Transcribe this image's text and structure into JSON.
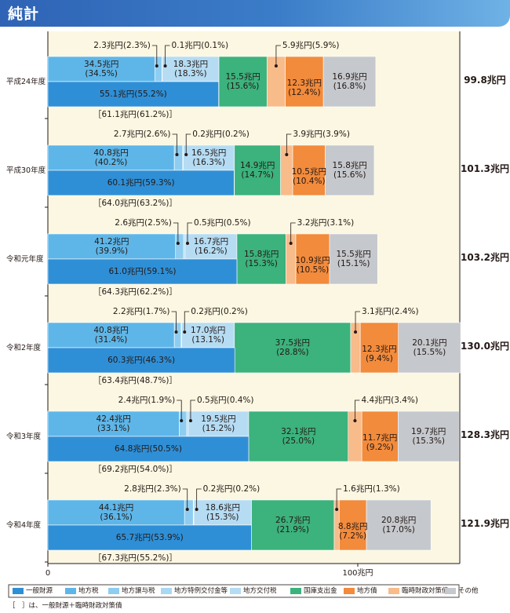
{
  "header": {
    "title": "純計"
  },
  "colors": {
    "一般財源": "#2f8fd6",
    "地方税": "#5eb6e8",
    "地方譲与税": "#8ecdf0",
    "地方特例交付金等": "#a9d8f3",
    "地方交付税": "#b5dcf3",
    "国庫支出金": "#3cb27d",
    "地方債": "#f28b3c",
    "臨時財政対策債": "#f8bb8a",
    "その他": "#c5c8cc",
    "total_area": "#fbf7e2"
  },
  "chart_data": {
    "type": "bar",
    "orientation": "horizontal",
    "stacked": true,
    "unit": "兆円",
    "xlim": [
      0,
      130
    ],
    "x_ticks": [
      {
        "value": 0,
        "label": "0"
      },
      {
        "value": 100,
        "label": "100兆円"
      }
    ],
    "legend": {
      "position": "bottom",
      "items": [
        "一般財源",
        "地方税",
        "地方譲与税",
        "地方特例交付金等",
        "地方交付税",
        "国庫支出金",
        "地方債",
        "臨時財政対策債",
        "その他"
      ]
    },
    "footnote": "［　］は、一般財源＋臨時財政対策債",
    "categories": [
      {
        "year": "平成24年度",
        "total_label": "99.8兆円",
        "general": {
          "value": 55.1,
          "label": "55.1兆円(55.2%)"
        },
        "chihouzei": {
          "value": 34.5,
          "label": "34.5兆円\n(34.5%)"
        },
        "jouyozei": {
          "value": 2.3,
          "label": "2.3兆円(2.3%)"
        },
        "tokurei": {
          "value": 0.1,
          "label": "0.1兆円(0.1%)"
        },
        "koufuzei": {
          "value": 18.3,
          "label": "18.3兆円\n(18.3%)"
        },
        "kokko": {
          "value": 15.5,
          "label": "15.5兆円\n(15.6%)"
        },
        "rinji": {
          "value": 5.9,
          "label": "5.9兆円(5.9%)"
        },
        "chihousai": {
          "value": 12.3,
          "label": "12.3兆円\n(12.4%)"
        },
        "other": {
          "value": 16.9,
          "label": "16.9兆円\n(16.8%)"
        },
        "bracket": "［61.1兆円(61.2%)］"
      },
      {
        "year": "平成30年度",
        "total_label": "101.3兆円",
        "general": {
          "value": 60.1,
          "label": "60.1兆円(59.3%)"
        },
        "chihouzei": {
          "value": 40.8,
          "label": "40.8兆円\n(40.2%)"
        },
        "jouyozei": {
          "value": 2.7,
          "label": "2.7兆円(2.6%)"
        },
        "tokurei": {
          "value": 0.2,
          "label": "0.2兆円(0.2%)"
        },
        "koufuzei": {
          "value": 16.5,
          "label": "16.5兆円\n(16.3%)"
        },
        "kokko": {
          "value": 14.9,
          "label": "14.9兆円\n(14.7%)"
        },
        "rinji": {
          "value": 3.9,
          "label": "3.9兆円(3.9%)"
        },
        "chihousai": {
          "value": 10.5,
          "label": "10.5兆円\n(10.4%)"
        },
        "other": {
          "value": 15.8,
          "label": "15.8兆円\n(15.6%)"
        },
        "bracket": "［64.0兆円(63.2%)］"
      },
      {
        "year": "令和元年度",
        "total_label": "103.2兆円",
        "general": {
          "value": 61.0,
          "label": "61.0兆円(59.1%)"
        },
        "chihouzei": {
          "value": 41.2,
          "label": "41.2兆円\n(39.9%)"
        },
        "jouyozei": {
          "value": 2.6,
          "label": "2.6兆円(2.5%)"
        },
        "tokurei": {
          "value": 0.5,
          "label": "0.5兆円(0.5%)"
        },
        "koufuzei": {
          "value": 16.7,
          "label": "16.7兆円\n(16.2%)"
        },
        "kokko": {
          "value": 15.8,
          "label": "15.8兆円\n(15.3%)"
        },
        "rinji": {
          "value": 3.2,
          "label": "3.2兆円(3.1%)"
        },
        "chihousai": {
          "value": 10.9,
          "label": "10.9兆円\n(10.5%)"
        },
        "other": {
          "value": 15.5,
          "label": "15.5兆円\n(15.1%)"
        },
        "bracket": "［64.3兆円(62.2%)］"
      },
      {
        "year": "令和2年度",
        "total_label": "130.0兆円",
        "general": {
          "value": 60.3,
          "label": "60.3兆円(46.3%)"
        },
        "chihouzei": {
          "value": 40.8,
          "label": "40.8兆円\n(31.4%)"
        },
        "jouyozei": {
          "value": 2.2,
          "label": "2.2兆円(1.7%)"
        },
        "tokurei": {
          "value": 0.2,
          "label": "0.2兆円(0.2%)"
        },
        "koufuzei": {
          "value": 17.0,
          "label": "17.0兆円\n(13.1%)"
        },
        "kokko": {
          "value": 37.5,
          "label": "37.5兆円\n(28.8%)"
        },
        "rinji": {
          "value": 3.1,
          "label": "3.1兆円(2.4%)"
        },
        "chihousai": {
          "value": 12.3,
          "label": "12.3兆円\n(9.4%)"
        },
        "other": {
          "value": 20.1,
          "label": "20.1兆円\n(15.5%)"
        },
        "bracket": "［63.4兆円(48.7%)］"
      },
      {
        "year": "令和3年度",
        "total_label": "128.3兆円",
        "general": {
          "value": 64.8,
          "label": "64.8兆円(50.5%)"
        },
        "chihouzei": {
          "value": 42.4,
          "label": "42.4兆円\n(33.1%)"
        },
        "jouyozei": {
          "value": 2.4,
          "label": "2.4兆円(1.9%)"
        },
        "tokurei": {
          "value": 0.5,
          "label": "0.5兆円(0.4%)"
        },
        "koufuzei": {
          "value": 19.5,
          "label": "19.5兆円\n(15.2%)"
        },
        "kokko": {
          "value": 32.1,
          "label": "32.1兆円\n(25.0%)"
        },
        "rinji": {
          "value": 4.4,
          "label": "4.4兆円(3.4%)"
        },
        "chihousai": {
          "value": 11.7,
          "label": "11.7兆円\n(9.2%)"
        },
        "other": {
          "value": 19.7,
          "label": "19.7兆円\n(15.3%)"
        },
        "bracket": "［69.2兆円(54.0%)］"
      },
      {
        "year": "令和4年度",
        "total_label": "121.9兆円",
        "general": {
          "value": 65.7,
          "label": "65.7兆円(53.9%)"
        },
        "chihouzei": {
          "value": 44.1,
          "label": "44.1兆円\n(36.1%)"
        },
        "jouyozei": {
          "value": 2.8,
          "label": "2.8兆円(2.3%)"
        },
        "tokurei": {
          "value": 0.2,
          "label": "0.2兆円(0.2%)"
        },
        "koufuzei": {
          "value": 18.6,
          "label": "18.6兆円\n(15.3%)"
        },
        "kokko": {
          "value": 26.7,
          "label": "26.7兆円\n(21.9%)"
        },
        "rinji": {
          "value": 1.6,
          "label": "1.6兆円(1.3%)"
        },
        "chihousai": {
          "value": 8.8,
          "label": "8.8兆円\n(7.2%)"
        },
        "other": {
          "value": 20.8,
          "label": "20.8兆円\n(17.0%)"
        },
        "bracket": "［67.3兆円(55.2%)］"
      }
    ]
  }
}
